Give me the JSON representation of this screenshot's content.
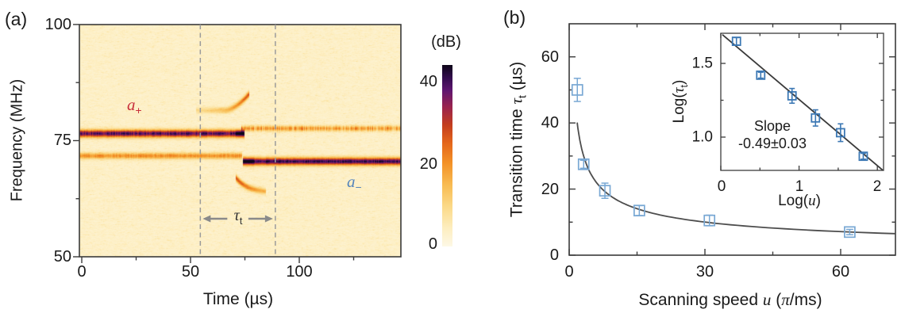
{
  "figure": {
    "panel_a": {
      "tag": "(a)",
      "ylabel": "Frequency (MHz)",
      "xlabel": "Time (µs)",
      "ytick_labels": [
        "100",
        "75",
        "50"
      ],
      "xtick_labels": [
        "0",
        "50",
        "100"
      ],
      "mode_plus": {
        "base": "a",
        "sub": "+",
        "color": "#c8303c"
      },
      "mode_minus": {
        "base": "a",
        "sub": "−",
        "color": "#5585bb"
      },
      "tau_annotation": {
        "tau": "τ",
        "sub": "t",
        "color": "#333333"
      }
    },
    "colorbar": {
      "title": "(dB)",
      "tick_labels": [
        "40",
        "20",
        "0"
      ]
    },
    "panel_b": {
      "tag": "(b)",
      "ylabel_parts": {
        "pre": "Transition time ",
        "tau": "τ",
        "sub": "t",
        "post": " (µs)"
      },
      "xlabel_parts": {
        "pre": "Scanning speed ",
        "u": "u",
        "mid": " (",
        "pi": "π",
        "post": "/ms)"
      },
      "ytick_labels": [
        "0",
        "20",
        "40",
        "60"
      ],
      "xtick_labels": [
        "0",
        "30",
        "60"
      ],
      "inset": {
        "ylabel_parts": {
          "pre": "Log(",
          "tau": "τ",
          "sub": "t",
          "post": ")"
        },
        "xlabel_parts": {
          "pre": "Log(",
          "u": "u",
          "post": ")"
        },
        "ytick_labels": [
          "1.5",
          "1.0"
        ],
        "xtick_labels": [
          "0",
          "1",
          "2"
        ],
        "slope_line1": "Slope",
        "slope_line2": "-0.49±0.03"
      }
    }
  },
  "chart_data": [
    {
      "type": "heatmap",
      "panel": "a",
      "xlabel": "Time (µs)",
      "ylabel": "Frequency (MHz)",
      "xlim": [
        0,
        146
      ],
      "ylim": [
        50,
        100
      ],
      "xticks": [
        0,
        50,
        100
      ],
      "xticks_minor": [
        25,
        75,
        125
      ],
      "yticks": [
        100,
        75,
        50
      ],
      "yticks_minor": [
        87.5,
        62.5
      ],
      "colorbar": {
        "label": "(dB)",
        "ticks": [
          40,
          20,
          0
        ],
        "range_db": [
          0,
          44
        ]
      },
      "dashed_lines_t_us": [
        54.5,
        89
      ],
      "features": {
        "a_plus": {
          "freq_mhz": 76.6,
          "sigma_mhz": 0.55,
          "amp": 0.88,
          "t_end_us": 74.5,
          "blob_start_us": 70.5
        },
        "a_plus_residual": {
          "freq_mhz": 77.7,
          "sigma_mhz": 0.4,
          "amp": 0.34,
          "t_start_us": 73
        },
        "lower_sideband": {
          "freq_mhz": 71.8,
          "sigma_mhz": 0.45,
          "amp": 0.4,
          "t_end_us": 73.5
        },
        "a_minus": {
          "freq_mhz": 70.6,
          "sigma_mhz": 0.55,
          "amp": 0.92,
          "t_start_us": 74,
          "blob_end_us": 79
        },
        "chirp_up": {
          "t_start_us": 52.5,
          "t_end_us": 77,
          "f_flat_mhz": 81.6,
          "f_top_mhz": 85.2,
          "bend_us": 66
        },
        "chirp_down": {
          "t_start_us": 70.5,
          "t_end_us": 84.5,
          "f_start_mhz": 67.2,
          "f_end_mhz": 63.9
        }
      },
      "colormap": [
        {
          "p": 0.0,
          "c": "#fdf8e6"
        },
        {
          "p": 0.1,
          "c": "#fdeec0"
        },
        {
          "p": 0.22,
          "c": "#fbd988"
        },
        {
          "p": 0.34,
          "c": "#f8bb52"
        },
        {
          "p": 0.46,
          "c": "#f39127"
        },
        {
          "p": 0.57,
          "c": "#e4661b"
        },
        {
          "p": 0.67,
          "c": "#c33d1e"
        },
        {
          "p": 0.77,
          "c": "#99234f"
        },
        {
          "p": 0.86,
          "c": "#5f1670"
        },
        {
          "p": 0.93,
          "c": "#330c4e"
        },
        {
          "p": 1.0,
          "c": "#0e0618"
        }
      ]
    },
    {
      "type": "scatter",
      "panel": "b",
      "xlabel": "Scanning speed u (π/ms)",
      "ylabel": "Transition time τt (µs)",
      "xlim": [
        0,
        72
      ],
      "ylim": [
        0,
        70
      ],
      "xticks": [
        0,
        30,
        60
      ],
      "xticks_minor": [
        15,
        45
      ],
      "yticks": [
        0,
        20,
        40,
        60
      ],
      "yticks_minor": [
        10,
        30,
        50
      ],
      "series": [
        {
          "name": "measured transition times",
          "marker": "open-square",
          "marker_color": "#79a8d4",
          "x": [
            1.8,
            3.2,
            7.9,
            15.5,
            31,
            62
          ],
          "y": [
            50,
            27.5,
            19.5,
            13.5,
            10.5,
            7
          ],
          "yerr": [
            3.5,
            1.2,
            2.3,
            1.5,
            1.6,
            0.8
          ]
        }
      ],
      "fit": {
        "model": "power",
        "amplitude": 53,
        "exponent": -0.49,
        "line_color": "#4d4d4d"
      }
    },
    {
      "type": "scatter",
      "panel": "b-inset",
      "xlabel": "Log(u)",
      "ylabel": "Log(τt)",
      "xlim": [
        0,
        2.07
      ],
      "ylim": [
        0.77,
        1.7
      ],
      "xticks": [
        0,
        1,
        2
      ],
      "xticks_minor": [
        0.5,
        1.5
      ],
      "yticks": [
        1.5,
        1.0
      ],
      "yticks_minor": [
        1.25
      ],
      "marker": "open-square",
      "marker_color": "#3c78b4",
      "x": [
        0.2,
        0.51,
        0.91,
        1.21,
        1.53,
        1.82
      ],
      "y": [
        1.65,
        1.42,
        1.28,
        1.13,
        1.03,
        0.87
      ],
      "yerr": [
        0.025,
        0.02,
        0.05,
        0.055,
        0.06,
        0.02
      ],
      "fit": {
        "slope": -0.49,
        "slope_err": 0.03,
        "annotation": "Slope -0.49±0.03",
        "line": {
          "x1": 0.02,
          "y1": 1.695,
          "x2": 2.07,
          "y2": 0.775
        },
        "line_color": "#3a3a3a"
      }
    }
  ]
}
